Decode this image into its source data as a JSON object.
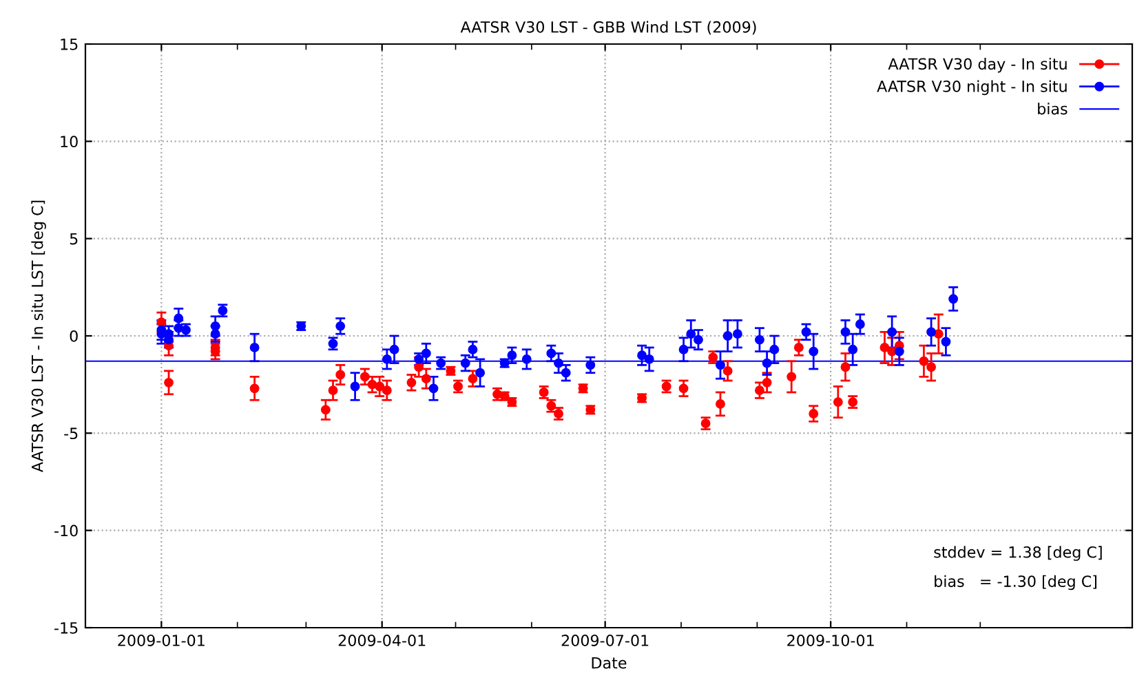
{
  "chart_data": {
    "type": "scatter",
    "title": "AATSR V30 LST - GBB Wind LST (2009)",
    "xlabel": "Date",
    "ylabel": "AATSR V30 LST - In situ LST [deg C]",
    "series": [
      {
        "name": "AATSR V30 day - In situ",
        "color": "#ff0000",
        "x": [
          "2009-01-01",
          "2009-01-04",
          "2009-01-04",
          "2009-01-23",
          "2009-01-23",
          "2009-02-08",
          "2009-03-09",
          "2009-03-12",
          "2009-03-15",
          "2009-03-25",
          "2009-03-28",
          "2009-03-31",
          "2009-04-03",
          "2009-04-13",
          "2009-04-16",
          "2009-04-19",
          "2009-04-29",
          "2009-05-02",
          "2009-05-08",
          "2009-05-18",
          "2009-05-21",
          "2009-05-24",
          "2009-06-06",
          "2009-06-09",
          "2009-06-12",
          "2009-06-22",
          "2009-06-25",
          "2009-07-16",
          "2009-07-26",
          "2009-08-02",
          "2009-08-11",
          "2009-08-14",
          "2009-08-17",
          "2009-08-20",
          "2009-09-02",
          "2009-09-05",
          "2009-09-15",
          "2009-09-18",
          "2009-09-24",
          "2009-10-04",
          "2009-10-07",
          "2009-10-10",
          "2009-10-23",
          "2009-10-26",
          "2009-10-29",
          "2009-11-08",
          "2009-11-11",
          "2009-11-14"
        ],
        "values": [
          0.7,
          -0.5,
          -2.4,
          -0.6,
          -0.8,
          -2.7,
          -3.8,
          -2.8,
          -2.0,
          -2.1,
          -2.5,
          -2.6,
          -2.8,
          -2.4,
          -1.6,
          -2.2,
          -1.8,
          -2.6,
          -2.2,
          -3.0,
          -3.1,
          -3.4,
          -2.9,
          -3.6,
          -4.0,
          -2.7,
          -3.8,
          -3.2,
          -2.6,
          -2.7,
          -4.5,
          -1.1,
          -3.5,
          -1.8,
          -2.8,
          -2.4,
          -2.1,
          -0.6,
          -4.0,
          -3.4,
          -1.6,
          -3.4,
          -0.6,
          -0.8,
          -0.5,
          -1.3,
          -1.6,
          0.1
        ],
        "errors": [
          0.5,
          0.5,
          0.6,
          0.4,
          0.4,
          0.6,
          0.5,
          0.5,
          0.5,
          0.4,
          0.4,
          0.5,
          0.5,
          0.4,
          0.5,
          0.5,
          0.2,
          0.3,
          0.4,
          0.3,
          0.2,
          0.2,
          0.3,
          0.3,
          0.3,
          0.2,
          0.2,
          0.2,
          0.3,
          0.4,
          0.3,
          0.3,
          0.6,
          0.5,
          0.4,
          0.5,
          0.8,
          0.4,
          0.4,
          0.8,
          0.7,
          0.3,
          0.8,
          0.7,
          0.7,
          0.8,
          0.7,
          1.0
        ]
      },
      {
        "name": "AATSR V30 night - In situ",
        "color": "#0000ff",
        "x": [
          "2009-01-01",
          "2009-01-01",
          "2009-01-04",
          "2009-01-04",
          "2009-01-08",
          "2009-01-08",
          "2009-01-11",
          "2009-01-23",
          "2009-01-23",
          "2009-01-26",
          "2009-02-08",
          "2009-02-27",
          "2009-03-12",
          "2009-03-15",
          "2009-03-21",
          "2009-04-03",
          "2009-04-06",
          "2009-04-16",
          "2009-04-19",
          "2009-04-22",
          "2009-04-25",
          "2009-05-05",
          "2009-05-08",
          "2009-05-11",
          "2009-05-21",
          "2009-05-24",
          "2009-05-30",
          "2009-06-09",
          "2009-06-12",
          "2009-06-15",
          "2009-06-25",
          "2009-07-16",
          "2009-07-19",
          "2009-08-02",
          "2009-08-05",
          "2009-08-08",
          "2009-08-17",
          "2009-08-20",
          "2009-08-24",
          "2009-09-02",
          "2009-09-05",
          "2009-09-08",
          "2009-09-21",
          "2009-09-24",
          "2009-10-07",
          "2009-10-10",
          "2009-10-13",
          "2009-10-26",
          "2009-10-29",
          "2009-11-11",
          "2009-11-17",
          "2009-11-20"
        ],
        "values": [
          0.3,
          0.1,
          0.1,
          -0.2,
          0.9,
          0.4,
          0.3,
          0.5,
          0.1,
          1.3,
          -0.6,
          0.5,
          -0.4,
          0.5,
          -2.6,
          -1.2,
          -0.7,
          -1.2,
          -0.9,
          -2.7,
          -1.4,
          -1.4,
          -0.7,
          -1.9,
          -1.4,
          -1.0,
          -1.2,
          -0.9,
          -1.4,
          -1.9,
          -1.5,
          -1.0,
          -1.2,
          -0.7,
          0.1,
          -0.2,
          -1.5,
          0.0,
          0.1,
          -0.2,
          -1.4,
          -0.7,
          0.2,
          -0.8,
          0.2,
          -0.7,
          0.6,
          0.2,
          -0.8,
          0.2,
          -0.3,
          1.9
        ],
        "errors": [
          0.5,
          0.5,
          0.4,
          0.4,
          0.5,
          0.4,
          0.3,
          0.5,
          0.4,
          0.3,
          0.7,
          0.2,
          0.3,
          0.4,
          0.7,
          0.5,
          0.7,
          0.3,
          0.5,
          0.6,
          0.3,
          0.4,
          0.4,
          0.7,
          0.2,
          0.4,
          0.5,
          0.4,
          0.5,
          0.4,
          0.4,
          0.5,
          0.6,
          0.6,
          0.7,
          0.5,
          0.7,
          0.8,
          0.7,
          0.6,
          0.6,
          0.7,
          0.4,
          0.9,
          0.6,
          0.8,
          0.5,
          0.8,
          0.7,
          0.7,
          0.7,
          0.6
        ]
      }
    ],
    "ref_lines": [
      {
        "axis": "y",
        "value": -1.3,
        "label": "bias",
        "color": "#0000ff",
        "line_style": "solid"
      }
    ],
    "annotations": [
      "stddev = 1.38 [deg C]",
      "bias   = -1.30 [deg C]"
    ],
    "xlim": [
      "2008-12-01",
      "2010-02-01"
    ],
    "xticks": [
      {
        "value": "2009-01-01",
        "label": "2009-01-01"
      },
      {
        "value": "2009-02-01",
        "label": null
      },
      {
        "value": "2009-03-01",
        "label": null
      },
      {
        "value": "2009-04-01",
        "label": "2009-04-01"
      },
      {
        "value": "2009-05-01",
        "label": null
      },
      {
        "value": "2009-06-01",
        "label": null
      },
      {
        "value": "2009-07-01",
        "label": "2009-07-01"
      },
      {
        "value": "2009-08-01",
        "label": null
      },
      {
        "value": "2009-09-01",
        "label": null
      },
      {
        "value": "2009-10-01",
        "label": "2009-10-01"
      },
      {
        "value": "2009-11-01",
        "label": null
      },
      {
        "value": "2009-12-01",
        "label": null
      }
    ],
    "ylim": [
      -15,
      15
    ],
    "yticks": [
      -15,
      -10,
      -5,
      0,
      5,
      10,
      15
    ],
    "grid": true,
    "legend": "top right",
    "marker": "circle"
  }
}
